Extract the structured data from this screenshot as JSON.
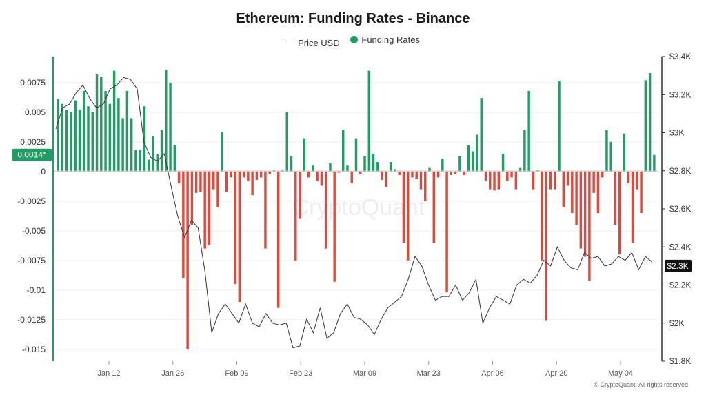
{
  "chart_data": {
    "type": "bar",
    "title": "Ethereum: Funding Rates - Binance",
    "legend": {
      "price_label": "Price USD",
      "funding_label": "Funding Rates",
      "placement": "top"
    },
    "x_tick_labels": [
      "Jan 12",
      "Jan 26",
      "Feb 09",
      "Feb 23",
      "Mar 09",
      "Mar 23",
      "Apr 06",
      "Apr 20",
      "May 04"
    ],
    "left_axis": {
      "ylim": [
        -0.016,
        0.0097
      ],
      "ticks": [
        0.0075,
        0.005,
        0.0025,
        0,
        -0.0025,
        -0.005,
        -0.0075,
        -0.01,
        -0.0125,
        -0.015
      ],
      "tick_labels": [
        "0.0075",
        "0.005",
        "0.0025",
        "0",
        "-0.0025",
        "-0.005",
        "-0.0075",
        "-0.01",
        "-0.0125",
        "-0.015"
      ]
    },
    "right_axis": {
      "ylim": [
        1800,
        3400
      ],
      "ticks": [
        3400,
        3200,
        3000,
        2800,
        2600,
        2400,
        2200,
        2000,
        1800
      ],
      "tick_labels": [
        "$3.4K",
        "$3.2K",
        "$3K",
        "$2.8K",
        "$2.6K",
        "$2.4K",
        "$2.2K",
        "$2K",
        "$1.8K"
      ]
    },
    "current_funding_label": "0.0014*",
    "current_funding_value": 0.0014,
    "current_price_label": "$2.3K",
    "current_price_value": 2300,
    "positive_color": "#1f9d63",
    "negative_color": "#e2473b",
    "price_color": "#333333",
    "series": [
      {
        "name": "Funding Rates",
        "values": [
          0.0061,
          0.0057,
          0.0052,
          0.005,
          0.006,
          0.0052,
          0.0068,
          0.0055,
          0.005,
          0.0082,
          0.008,
          0.0068,
          0.0057,
          0.0085,
          0.0062,
          0.0045,
          0.0068,
          0.0045,
          0.0018,
          0.0018,
          0.0055,
          0.001,
          0.003,
          0.0015,
          0.0035,
          0.0086,
          0.0075,
          0.0022,
          -0.001,
          -0.009,
          -0.015,
          -0.0045,
          -0.0018,
          -0.0017,
          -0.0065,
          -0.0062,
          -0.0015,
          -0.003,
          0.0033,
          -0.0017,
          -0.0005,
          -0.0095,
          -0.011,
          -0.0005,
          -0.0008,
          -0.002,
          -0.0007,
          -0.0005,
          -0.0065,
          -0.0002,
          0.0001,
          -0.0115,
          0.0001,
          0.005,
          0.0013,
          -0.0075,
          -0.004,
          0.0028,
          -0.0005,
          0.0005,
          -0.0008,
          -0.0012,
          -0.0065,
          0.0007,
          -0.0093,
          -0.0001,
          0.0035,
          0.0005,
          -0.001,
          0.0028,
          -0.0002,
          0.0013,
          0.0085,
          0.0015,
          0.0008,
          -0.0007,
          -0.0013,
          0.0008,
          0.0002,
          -0.0003,
          -0.006,
          -0.0075,
          -0.0005,
          -0.0006,
          -0.0015,
          -0.0025,
          0.0003,
          -0.006,
          -0.0005,
          0.0011,
          -0.0102,
          -0.0003,
          -0.0002,
          0.0013,
          -0.0003,
          0.0022,
          0.0017,
          0.0031,
          0.0062,
          -0.0008,
          -0.0015,
          -0.0016,
          -0.0015,
          0.0015,
          -0.0008,
          -0.0005,
          -0.0015,
          0.0003,
          0.0035,
          0.0068,
          -0.0015,
          0.0001,
          -0.0075,
          -0.0126,
          -0.0015,
          -0.0015,
          0.0076,
          -0.003,
          -0.0012,
          -0.0035,
          -0.0045,
          -0.0065,
          -0.0072,
          -0.0092,
          -0.0018,
          -0.0035,
          -0.0005,
          0.0035,
          0.0025,
          -0.0045,
          -0.007,
          0.0032,
          -0.001,
          -0.006,
          -0.0015,
          -0.0035,
          0.0077,
          0.0083,
          0.0014
        ]
      },
      {
        "name": "Price USD",
        "values": [
          3020,
          3130,
          3150,
          3210,
          3250,
          3180,
          3130,
          3150,
          3230,
          3250,
          3290,
          3280,
          3230,
          2950,
          2870,
          2850,
          2890,
          2720,
          2560,
          2450,
          2540,
          2500,
          2270,
          1950,
          2050,
          2100,
          2050,
          2000,
          2100,
          2000,
          1980,
          2050,
          2000,
          1990,
          2000,
          1870,
          1880,
          2020,
          1950,
          2080,
          1920,
          1950,
          2050,
          2100,
          2030,
          2020,
          1990,
          1940,
          2020,
          2080,
          2110,
          2140,
          2230,
          2350,
          2300,
          2200,
          2120,
          2140,
          2140,
          2200,
          2120,
          2160,
          2230,
          2000,
          2080,
          2140,
          2120,
          2100,
          2200,
          2230,
          2210,
          2250,
          2330,
          2300,
          2400,
          2330,
          2290,
          2280,
          2370,
          2340,
          2350,
          2300,
          2310,
          2350,
          2330,
          2370,
          2280,
          2350,
          2320
        ]
      }
    ],
    "watermark": "CryptoQuant",
    "credit": "© CryptoQuant. All rights reserved"
  }
}
